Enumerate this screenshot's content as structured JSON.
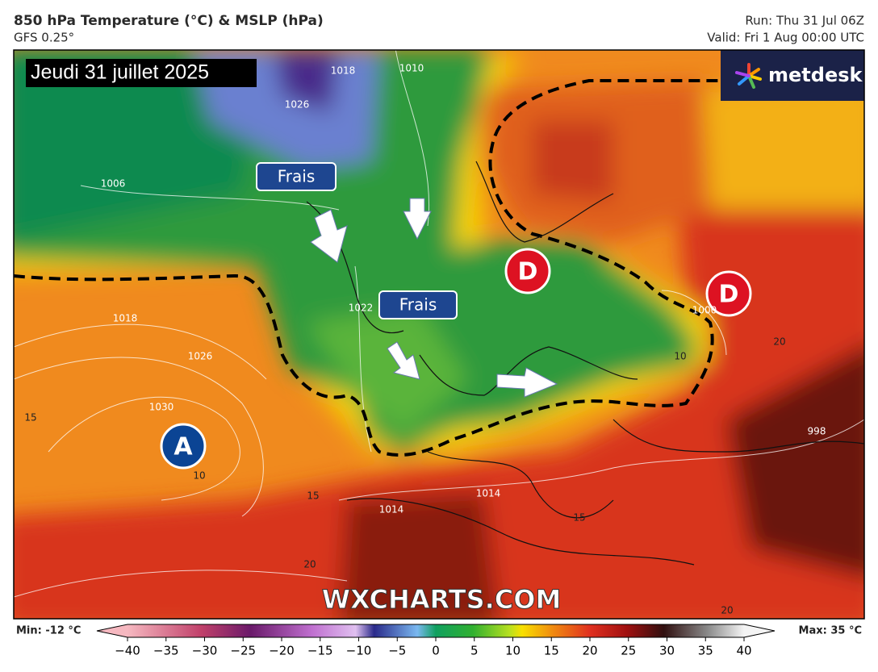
{
  "header": {
    "title": "850 hPa Temperature (°C) & MSLP (hPa)",
    "model": "GFS 0.25°",
    "run": "Run: Thu 31 Jul 06Z",
    "valid": "Valid: Fri 1 Aug 00:00 UTC"
  },
  "map": {
    "date_label": "Jeudi 31 juillet 2025",
    "logo": "metdesk",
    "watermark": "WXCHARTS.COM",
    "annotations": [
      {
        "label": "Frais"
      },
      {
        "label": "Frais"
      }
    ],
    "pressure_centers": [
      {
        "label": "A"
      },
      {
        "label": "D"
      },
      {
        "label": "D"
      }
    ],
    "isobar_labels": [
      "1018",
      "1026",
      "1030",
      "1014",
      "1014",
      "1022",
      "1006",
      "1010",
      "1018",
      "1026",
      "1000",
      "998"
    ],
    "temperature_labels": [
      "15",
      "10",
      "15",
      "20",
      "10",
      "20",
      "15",
      "20"
    ]
  },
  "colorbar": {
    "min_label": "Min: -12 °C",
    "max_label": "Max: 35 °C",
    "ticks": [
      {
        "value": -40,
        "label": "−40"
      },
      {
        "value": -35,
        "label": "−35"
      },
      {
        "value": -30,
        "label": "−30"
      },
      {
        "value": -25,
        "label": "−25"
      },
      {
        "value": -20,
        "label": "−20"
      },
      {
        "value": -15,
        "label": "−15"
      },
      {
        "value": -10,
        "label": "−10"
      },
      {
        "value": -5,
        "label": "−5"
      },
      0,
      5,
      10,
      15,
      20,
      25,
      30,
      35,
      40
    ]
  }
}
